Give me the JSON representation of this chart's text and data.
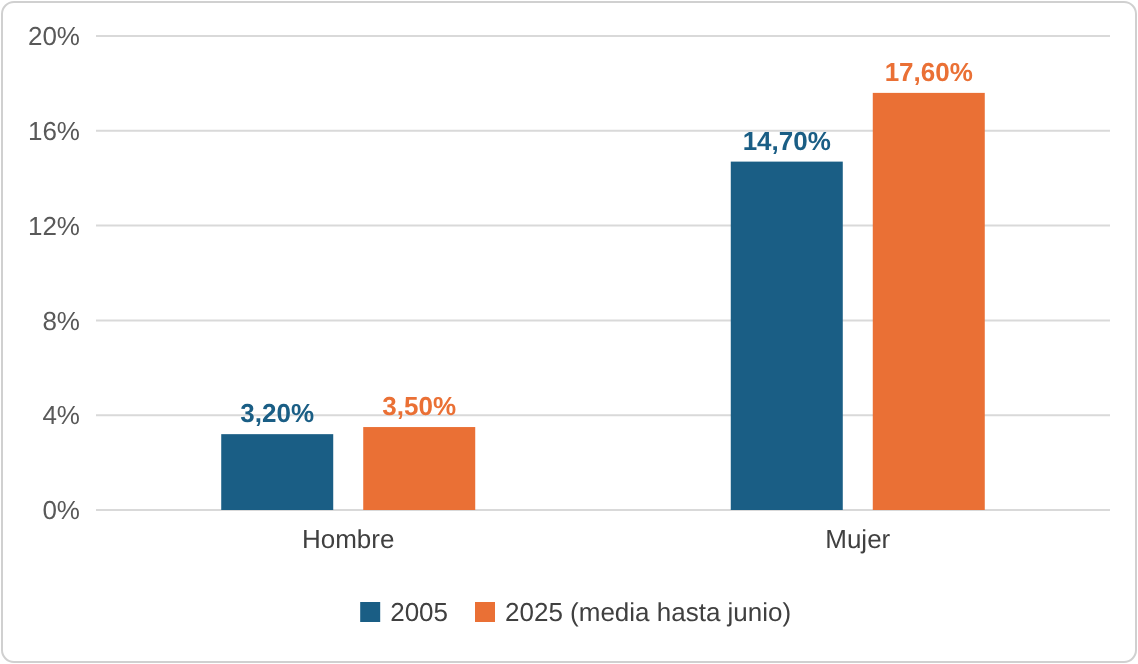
{
  "chart_data": {
    "type": "bar",
    "categories": [
      "Hombre",
      "Mujer"
    ],
    "series": [
      {
        "name": "2005",
        "color": "#1a5e85",
        "values": [
          3.2,
          14.7
        ],
        "value_labels": [
          "3,20%",
          "14,70%"
        ]
      },
      {
        "name": "2025 (media hasta junio)",
        "color": "#ea7035",
        "values": [
          3.5,
          17.6
        ],
        "value_labels": [
          "3,50%",
          "17,60%"
        ]
      }
    ],
    "ylim": [
      0,
      20
    ],
    "yticks": [
      {
        "value": 0,
        "label": "0%"
      },
      {
        "value": 4,
        "label": "4%"
      },
      {
        "value": 8,
        "label": "8%"
      },
      {
        "value": 12,
        "label": "12%"
      },
      {
        "value": 16,
        "label": "16%"
      },
      {
        "value": 20,
        "label": "20%"
      }
    ],
    "grid": "y",
    "legend": "bottom"
  }
}
